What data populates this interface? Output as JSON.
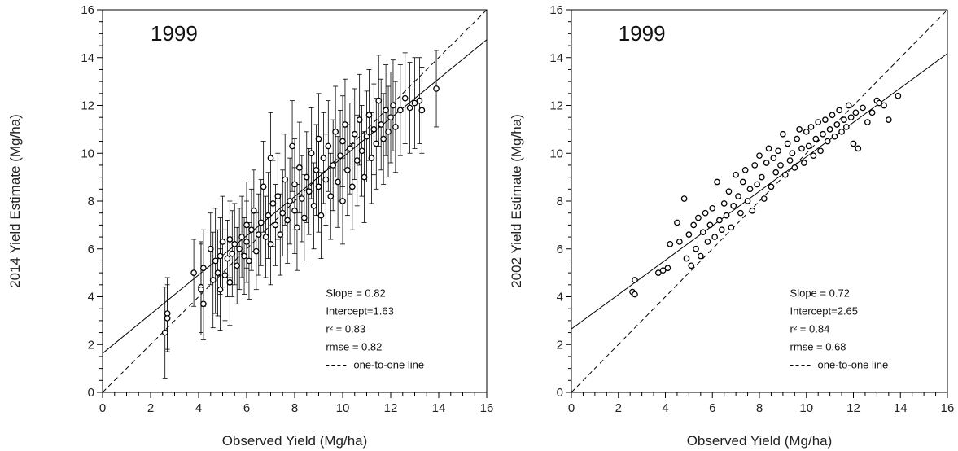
{
  "chart_data": [
    {
      "type": "scatter",
      "year_label": "1999",
      "xlabel": "Observed Yield (Mg/ha)",
      "ylabel": "2014 Yield Estimate (Mg/ha)",
      "xlim": [
        0,
        16
      ],
      "ylim": [
        0,
        16
      ],
      "x_ticks": [
        "0",
        "2",
        "4",
        "6",
        "8",
        "10",
        "12",
        "14",
        "16"
      ],
      "y_ticks": [
        "0",
        "2",
        "4",
        "6",
        "8",
        "10",
        "12",
        "14",
        "16"
      ],
      "fit": {
        "slope": 0.82,
        "intercept": 1.63
      },
      "stats": [
        "Slope = 0.82",
        "Intercept=1.63",
        "r² = 0.83",
        "rmse = 0.82"
      ],
      "legend": "one-to-one line",
      "error_bars": true,
      "points": [
        [
          2.6,
          2.5,
          1.9
        ],
        [
          2.7,
          3.3,
          1.5
        ],
        [
          2.7,
          3.1,
          1.4
        ],
        [
          3.8,
          5.0,
          1.4
        ],
        [
          4.1,
          4.4,
          1.9
        ],
        [
          4.1,
          4.3,
          1.9
        ],
        [
          4.2,
          3.7,
          1.5
        ],
        [
          4.2,
          5.2,
          1.6
        ],
        [
          4.5,
          6.0,
          1.5
        ],
        [
          4.6,
          4.7,
          2.0
        ],
        [
          4.7,
          5.5,
          2.2
        ],
        [
          4.8,
          5.0,
          1.8
        ],
        [
          4.9,
          5.7,
          1.6
        ],
        [
          4.9,
          4.3,
          1.7
        ],
        [
          5.0,
          6.3,
          1.9
        ],
        [
          5.1,
          4.9,
          1.9
        ],
        [
          5.2,
          5.6,
          1.6
        ],
        [
          5.3,
          6.4,
          1.6
        ],
        [
          5.3,
          4.6,
          1.8
        ],
        [
          5.4,
          5.8,
          1.8
        ],
        [
          5.5,
          6.2,
          1.7
        ],
        [
          5.6,
          5.3,
          1.6
        ],
        [
          5.7,
          6.0,
          1.7
        ],
        [
          5.8,
          6.5,
          1.7
        ],
        [
          5.9,
          5.7,
          1.6
        ],
        [
          6.0,
          6.3,
          1.7
        ],
        [
          6.0,
          7.0,
          1.8
        ],
        [
          6.1,
          5.5,
          1.6
        ],
        [
          6.2,
          6.8,
          1.7
        ],
        [
          6.3,
          7.6,
          1.7
        ],
        [
          6.4,
          5.9,
          1.6
        ],
        [
          6.5,
          6.6,
          1.7
        ],
        [
          6.6,
          7.1,
          1.8
        ],
        [
          6.7,
          8.6,
          1.9
        ],
        [
          6.8,
          6.5,
          1.7
        ],
        [
          6.9,
          7.4,
          1.8
        ],
        [
          7.0,
          6.2,
          1.7
        ],
        [
          7.0,
          9.8,
          1.9
        ],
        [
          7.1,
          7.9,
          1.8
        ],
        [
          7.2,
          7.0,
          1.7
        ],
        [
          7.3,
          8.2,
          1.8
        ],
        [
          7.4,
          6.6,
          1.7
        ],
        [
          7.5,
          7.5,
          1.8
        ],
        [
          7.6,
          8.9,
          1.9
        ],
        [
          7.7,
          7.2,
          1.8
        ],
        [
          7.8,
          8.0,
          1.8
        ],
        [
          7.9,
          10.3,
          1.9
        ],
        [
          8.0,
          7.6,
          1.8
        ],
        [
          8.0,
          8.7,
          1.9
        ],
        [
          8.1,
          6.9,
          1.8
        ],
        [
          8.2,
          9.4,
          1.9
        ],
        [
          8.3,
          8.1,
          1.8
        ],
        [
          8.4,
          7.3,
          1.8
        ],
        [
          8.5,
          9.0,
          1.9
        ],
        [
          8.6,
          8.4,
          1.8
        ],
        [
          8.7,
          10.0,
          1.9
        ],
        [
          8.8,
          7.8,
          1.8
        ],
        [
          8.9,
          9.3,
          1.9
        ],
        [
          9.0,
          8.6,
          1.9
        ],
        [
          9.0,
          10.6,
          1.9
        ],
        [
          9.1,
          7.4,
          1.8
        ],
        [
          9.2,
          9.8,
          1.9
        ],
        [
          9.3,
          8.9,
          1.9
        ],
        [
          9.4,
          10.3,
          1.9
        ],
        [
          9.5,
          8.2,
          1.8
        ],
        [
          9.6,
          9.5,
          1.9
        ],
        [
          9.7,
          10.9,
          1.9
        ],
        [
          9.8,
          8.8,
          1.9
        ],
        [
          9.9,
          9.9,
          1.9
        ],
        [
          10.0,
          10.5,
          1.9
        ],
        [
          10.0,
          8.0,
          1.8
        ],
        [
          10.1,
          11.2,
          1.9
        ],
        [
          10.2,
          9.3,
          1.9
        ],
        [
          10.3,
          10.2,
          1.9
        ],
        [
          10.4,
          8.6,
          1.8
        ],
        [
          10.5,
          10.8,
          1.9
        ],
        [
          10.6,
          9.7,
          1.9
        ],
        [
          10.7,
          11.4,
          1.9
        ],
        [
          10.8,
          10.1,
          1.9
        ],
        [
          10.9,
          9.0,
          1.9
        ],
        [
          11.0,
          10.7,
          1.9
        ],
        [
          11.1,
          11.6,
          1.9
        ],
        [
          11.2,
          9.8,
          1.9
        ],
        [
          11.3,
          11.0,
          1.9
        ],
        [
          11.4,
          10.4,
          1.9
        ],
        [
          11.5,
          12.2,
          1.9
        ],
        [
          11.6,
          11.2,
          1.9
        ],
        [
          11.7,
          10.6,
          1.9
        ],
        [
          11.8,
          11.8,
          1.9
        ],
        [
          11.9,
          10.9,
          1.9
        ],
        [
          12.0,
          11.5,
          1.9
        ],
        [
          12.1,
          12.0,
          1.9
        ],
        [
          12.2,
          11.1,
          1.9
        ],
        [
          12.4,
          11.8,
          1.9
        ],
        [
          12.6,
          12.3,
          1.9
        ],
        [
          12.8,
          11.9,
          1.9
        ],
        [
          13.0,
          12.1,
          1.9
        ],
        [
          13.2,
          12.2,
          1.8
        ],
        [
          13.3,
          11.8,
          1.8
        ],
        [
          13.9,
          12.7,
          1.6
        ]
      ]
    },
    {
      "type": "scatter",
      "year_label": "1999",
      "xlabel": "Observed Yield (Mg/ha)",
      "ylabel": "2002 Yield Estimate (Mg/ha)",
      "xlim": [
        0,
        16
      ],
      "ylim": [
        0,
        16
      ],
      "x_ticks": [
        "0",
        "2",
        "4",
        "6",
        "8",
        "10",
        "12",
        "14",
        "16"
      ],
      "y_ticks": [
        "0",
        "2",
        "4",
        "6",
        "8",
        "10",
        "12",
        "14",
        "16"
      ],
      "fit": {
        "slope": 0.72,
        "intercept": 2.65
      },
      "stats": [
        "Slope = 0.72",
        "Intercept=2.65",
        "r² = 0.84",
        "rmse = 0.68"
      ],
      "legend": "one-to-one line",
      "error_bars": false,
      "points": [
        [
          2.6,
          4.2,
          0
        ],
        [
          2.7,
          4.1,
          0
        ],
        [
          2.7,
          4.7,
          0
        ],
        [
          3.7,
          5.0,
          0
        ],
        [
          3.9,
          5.1,
          0
        ],
        [
          4.1,
          5.2,
          0
        ],
        [
          4.2,
          6.2,
          0
        ],
        [
          4.5,
          7.1,
          0
        ],
        [
          4.6,
          6.3,
          0
        ],
        [
          4.8,
          8.1,
          0
        ],
        [
          4.9,
          5.6,
          0
        ],
        [
          5.0,
          6.6,
          0
        ],
        [
          5.1,
          5.3,
          0
        ],
        [
          5.2,
          7.0,
          0
        ],
        [
          5.3,
          6.0,
          0
        ],
        [
          5.4,
          7.3,
          0
        ],
        [
          5.5,
          5.7,
          0
        ],
        [
          5.6,
          6.7,
          0
        ],
        [
          5.7,
          7.5,
          0
        ],
        [
          5.8,
          6.3,
          0
        ],
        [
          5.9,
          7.0,
          0
        ],
        [
          6.0,
          7.7,
          0
        ],
        [
          6.1,
          6.5,
          0
        ],
        [
          6.2,
          8.8,
          0
        ],
        [
          6.3,
          7.2,
          0
        ],
        [
          6.4,
          6.8,
          0
        ],
        [
          6.5,
          7.9,
          0
        ],
        [
          6.6,
          7.4,
          0
        ],
        [
          6.7,
          8.4,
          0
        ],
        [
          6.8,
          6.9,
          0
        ],
        [
          6.9,
          7.8,
          0
        ],
        [
          7.0,
          9.1,
          0
        ],
        [
          7.1,
          8.2,
          0
        ],
        [
          7.2,
          7.5,
          0
        ],
        [
          7.3,
          8.8,
          0
        ],
        [
          7.4,
          9.3,
          0
        ],
        [
          7.5,
          8.0,
          0
        ],
        [
          7.6,
          8.5,
          0
        ],
        [
          7.7,
          7.6,
          0
        ],
        [
          7.8,
          9.5,
          0
        ],
        [
          7.9,
          8.7,
          0
        ],
        [
          8.0,
          9.9,
          0
        ],
        [
          8.1,
          9.0,
          0
        ],
        [
          8.2,
          8.1,
          0
        ],
        [
          8.3,
          9.6,
          0
        ],
        [
          8.4,
          10.2,
          0
        ],
        [
          8.5,
          8.6,
          0
        ],
        [
          8.6,
          9.8,
          0
        ],
        [
          8.7,
          9.2,
          0
        ],
        [
          8.8,
          10.1,
          0
        ],
        [
          8.9,
          9.5,
          0
        ],
        [
          9.0,
          10.8,
          0
        ],
        [
          9.1,
          9.1,
          0
        ],
        [
          9.2,
          10.4,
          0
        ],
        [
          9.3,
          9.7,
          0
        ],
        [
          9.4,
          10.0,
          0
        ],
        [
          9.5,
          9.4,
          0
        ],
        [
          9.6,
          10.6,
          0
        ],
        [
          9.7,
          11.0,
          0
        ],
        [
          9.8,
          10.2,
          0
        ],
        [
          9.9,
          9.6,
          0
        ],
        [
          10.0,
          10.9,
          0
        ],
        [
          10.1,
          10.3,
          0
        ],
        [
          10.2,
          11.1,
          0
        ],
        [
          10.3,
          9.9,
          0
        ],
        [
          10.4,
          10.6,
          0
        ],
        [
          10.5,
          11.3,
          0
        ],
        [
          10.6,
          10.1,
          0
        ],
        [
          10.7,
          10.8,
          0
        ],
        [
          10.8,
          11.4,
          0
        ],
        [
          10.9,
          10.5,
          0
        ],
        [
          11.0,
          11.0,
          0
        ],
        [
          11.1,
          11.6,
          0
        ],
        [
          11.2,
          10.7,
          0
        ],
        [
          11.3,
          11.2,
          0
        ],
        [
          11.4,
          11.8,
          0
        ],
        [
          11.5,
          10.9,
          0
        ],
        [
          11.6,
          11.4,
          0
        ],
        [
          11.7,
          11.1,
          0
        ],
        [
          11.8,
          12.0,
          0
        ],
        [
          11.9,
          11.5,
          0
        ],
        [
          12.0,
          10.4,
          0
        ],
        [
          12.1,
          11.7,
          0
        ],
        [
          12.2,
          10.2,
          0
        ],
        [
          12.4,
          11.9,
          0
        ],
        [
          12.6,
          11.3,
          0
        ],
        [
          12.8,
          11.7,
          0
        ],
        [
          13.0,
          12.2,
          0
        ],
        [
          13.1,
          12.1,
          0
        ],
        [
          13.3,
          12.0,
          0
        ],
        [
          13.5,
          11.4,
          0
        ],
        [
          13.9,
          12.4,
          0
        ]
      ]
    }
  ]
}
